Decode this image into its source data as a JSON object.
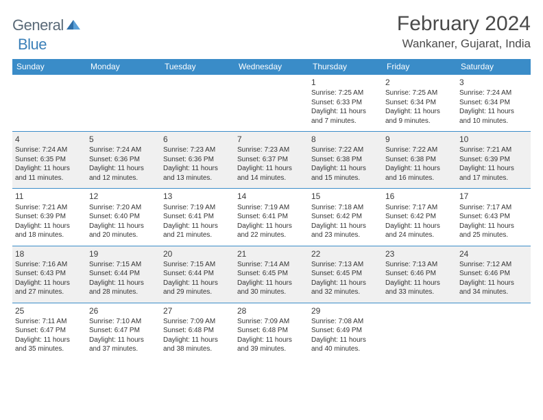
{
  "brand": {
    "name1": "General",
    "name2": "Blue"
  },
  "title": "February 2024",
  "location": "Wankaner, Gujarat, India",
  "colors": {
    "accent": "#3a8cc8",
    "text": "#333333",
    "altRow": "#f0f0f0",
    "bg": "#ffffff"
  },
  "dayHeaders": [
    "Sunday",
    "Monday",
    "Tuesday",
    "Wednesday",
    "Thursday",
    "Friday",
    "Saturday"
  ],
  "weeks": [
    [
      null,
      null,
      null,
      null,
      {
        "n": "1",
        "sr": "7:25 AM",
        "ss": "6:33 PM",
        "dl1": "11 hours",
        "dl2": "and 7 minutes."
      },
      {
        "n": "2",
        "sr": "7:25 AM",
        "ss": "6:34 PM",
        "dl1": "11 hours",
        "dl2": "and 9 minutes."
      },
      {
        "n": "3",
        "sr": "7:24 AM",
        "ss": "6:34 PM",
        "dl1": "11 hours",
        "dl2": "and 10 minutes."
      }
    ],
    [
      {
        "n": "4",
        "sr": "7:24 AM",
        "ss": "6:35 PM",
        "dl1": "11 hours",
        "dl2": "and 11 minutes."
      },
      {
        "n": "5",
        "sr": "7:24 AM",
        "ss": "6:36 PM",
        "dl1": "11 hours",
        "dl2": "and 12 minutes."
      },
      {
        "n": "6",
        "sr": "7:23 AM",
        "ss": "6:36 PM",
        "dl1": "11 hours",
        "dl2": "and 13 minutes."
      },
      {
        "n": "7",
        "sr": "7:23 AM",
        "ss": "6:37 PM",
        "dl1": "11 hours",
        "dl2": "and 14 minutes."
      },
      {
        "n": "8",
        "sr": "7:22 AM",
        "ss": "6:38 PM",
        "dl1": "11 hours",
        "dl2": "and 15 minutes."
      },
      {
        "n": "9",
        "sr": "7:22 AM",
        "ss": "6:38 PM",
        "dl1": "11 hours",
        "dl2": "and 16 minutes."
      },
      {
        "n": "10",
        "sr": "7:21 AM",
        "ss": "6:39 PM",
        "dl1": "11 hours",
        "dl2": "and 17 minutes."
      }
    ],
    [
      {
        "n": "11",
        "sr": "7:21 AM",
        "ss": "6:39 PM",
        "dl1": "11 hours",
        "dl2": "and 18 minutes."
      },
      {
        "n": "12",
        "sr": "7:20 AM",
        "ss": "6:40 PM",
        "dl1": "11 hours",
        "dl2": "and 20 minutes."
      },
      {
        "n": "13",
        "sr": "7:19 AM",
        "ss": "6:41 PM",
        "dl1": "11 hours",
        "dl2": "and 21 minutes."
      },
      {
        "n": "14",
        "sr": "7:19 AM",
        "ss": "6:41 PM",
        "dl1": "11 hours",
        "dl2": "and 22 minutes."
      },
      {
        "n": "15",
        "sr": "7:18 AM",
        "ss": "6:42 PM",
        "dl1": "11 hours",
        "dl2": "and 23 minutes."
      },
      {
        "n": "16",
        "sr": "7:17 AM",
        "ss": "6:42 PM",
        "dl1": "11 hours",
        "dl2": "and 24 minutes."
      },
      {
        "n": "17",
        "sr": "7:17 AM",
        "ss": "6:43 PM",
        "dl1": "11 hours",
        "dl2": "and 25 minutes."
      }
    ],
    [
      {
        "n": "18",
        "sr": "7:16 AM",
        "ss": "6:43 PM",
        "dl1": "11 hours",
        "dl2": "and 27 minutes."
      },
      {
        "n": "19",
        "sr": "7:15 AM",
        "ss": "6:44 PM",
        "dl1": "11 hours",
        "dl2": "and 28 minutes."
      },
      {
        "n": "20",
        "sr": "7:15 AM",
        "ss": "6:44 PM",
        "dl1": "11 hours",
        "dl2": "and 29 minutes."
      },
      {
        "n": "21",
        "sr": "7:14 AM",
        "ss": "6:45 PM",
        "dl1": "11 hours",
        "dl2": "and 30 minutes."
      },
      {
        "n": "22",
        "sr": "7:13 AM",
        "ss": "6:45 PM",
        "dl1": "11 hours",
        "dl2": "and 32 minutes."
      },
      {
        "n": "23",
        "sr": "7:13 AM",
        "ss": "6:46 PM",
        "dl1": "11 hours",
        "dl2": "and 33 minutes."
      },
      {
        "n": "24",
        "sr": "7:12 AM",
        "ss": "6:46 PM",
        "dl1": "11 hours",
        "dl2": "and 34 minutes."
      }
    ],
    [
      {
        "n": "25",
        "sr": "7:11 AM",
        "ss": "6:47 PM",
        "dl1": "11 hours",
        "dl2": "and 35 minutes."
      },
      {
        "n": "26",
        "sr": "7:10 AM",
        "ss": "6:47 PM",
        "dl1": "11 hours",
        "dl2": "and 37 minutes."
      },
      {
        "n": "27",
        "sr": "7:09 AM",
        "ss": "6:48 PM",
        "dl1": "11 hours",
        "dl2": "and 38 minutes."
      },
      {
        "n": "28",
        "sr": "7:09 AM",
        "ss": "6:48 PM",
        "dl1": "11 hours",
        "dl2": "and 39 minutes."
      },
      {
        "n": "29",
        "sr": "7:08 AM",
        "ss": "6:49 PM",
        "dl1": "11 hours",
        "dl2": "and 40 minutes."
      },
      null,
      null
    ]
  ],
  "labels": {
    "sunrise": "Sunrise: ",
    "sunset": "Sunset: ",
    "daylight": "Daylight: "
  }
}
